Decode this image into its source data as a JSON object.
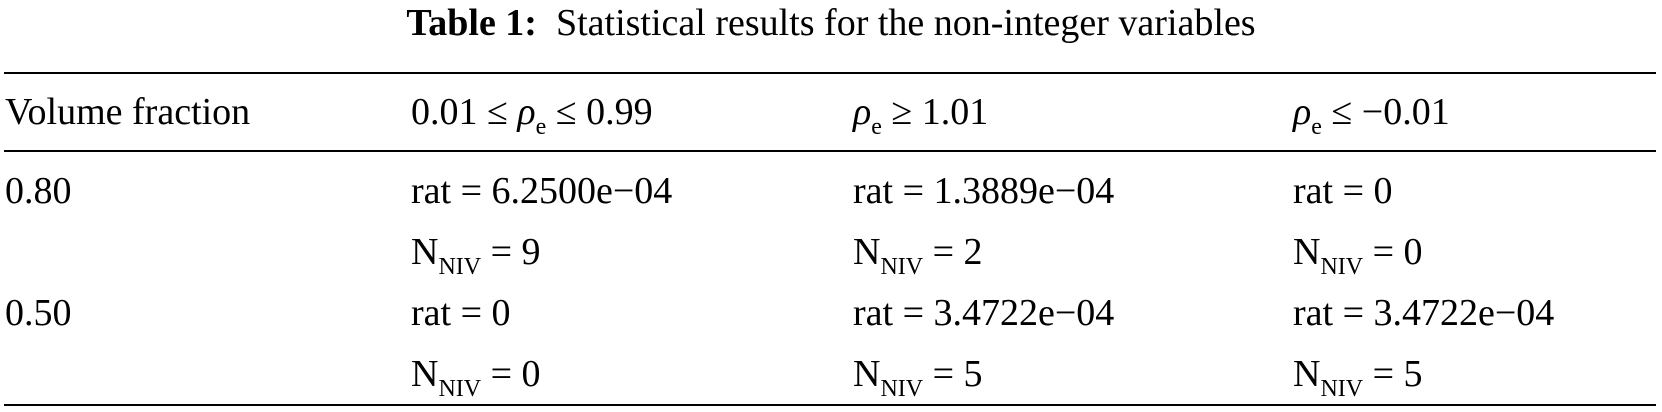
{
  "caption": {
    "label": "Table 1:",
    "text": "Statistical results for the non-integer variables"
  },
  "table": {
    "header": [
      "Volume fraction",
      {
        "pre": "0.01 ≤ ",
        "var": "ρ",
        "sub": "e",
        "post": " ≤ 0.99"
      },
      {
        "var": "ρ",
        "sub": "e",
        "post": " ≥ 1.01"
      },
      {
        "var": "ρ",
        "sub": "e",
        "post": " ≤ −0.01"
      }
    ],
    "rows": [
      {
        "fraction": "0.80",
        "cells": [
          {
            "rat": "rat = 6.2500e−04",
            "n": {
              "var": "N",
              "sub": "NIV",
              "post": " = 9"
            }
          },
          {
            "rat": "rat = 1.3889e−04",
            "n": {
              "var": "N",
              "sub": "NIV",
              "post": " = 2"
            }
          },
          {
            "rat": "rat = 0",
            "n": {
              "var": "N",
              "sub": "NIV",
              "post": " = 0"
            }
          }
        ]
      },
      {
        "fraction": "0.50",
        "cells": [
          {
            "rat": "rat = 0",
            "n": {
              "var": "N",
              "sub": "NIV",
              "post": " = 0"
            }
          },
          {
            "rat": "rat = 3.4722e−04",
            "n": {
              "var": "N",
              "sub": "NIV",
              "post": " = 5"
            }
          },
          {
            "rat": "rat = 3.4722e−04",
            "n": {
              "var": "N",
              "sub": "NIV",
              "post": " = 5"
            }
          }
        ]
      }
    ]
  }
}
